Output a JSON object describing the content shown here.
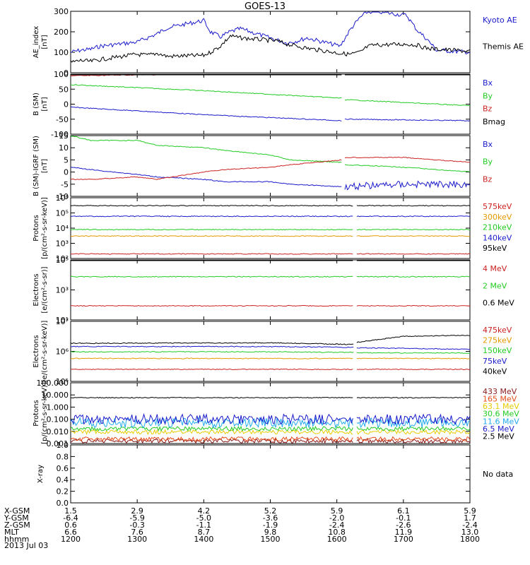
{
  "title": "GOES-13",
  "chart_data": [
    {
      "type": "line",
      "ylabel": "AE_index\n[nT]",
      "ylim": [
        0,
        300
      ],
      "yticks": [
        "0",
        "100",
        "200",
        "300"
      ],
      "series": [
        {
          "name": "Kyoto AE",
          "color": "#1a1acc",
          "x": [
            1200,
            1215,
            1230,
            1245,
            1300,
            1315,
            1330,
            1345,
            1400,
            1410,
            1425,
            1440,
            1455,
            1510,
            1525,
            1540,
            1555,
            1605,
            1620,
            1635,
            1645,
            1655,
            1705,
            1720,
            1735,
            1750,
            1800
          ],
          "y": [
            100,
            110,
            115,
            130,
            150,
            170,
            190,
            220,
            255,
            200,
            175,
            200,
            215,
            160,
            145,
            155,
            170,
            130,
            210,
            270,
            295,
            300,
            280,
            210,
            165,
            110,
            100
          ]
        },
        {
          "name": "Themis AE",
          "color": "#000000",
          "x": [
            1200,
            1215,
            1230,
            1245,
            1300,
            1315,
            1330,
            1345,
            1400,
            1410,
            1425,
            1440,
            1455,
            1510,
            1525,
            1540,
            1555,
            1605,
            1620,
            1635,
            1645,
            1655,
            1705,
            1720,
            1735,
            1750,
            1800
          ],
          "y": [
            50,
            60,
            55,
            65,
            90,
            85,
            95,
            80,
            85,
            100,
            130,
            180,
            170,
            155,
            140,
            130,
            120,
            95,
            90,
            100,
            125,
            135,
            140,
            135,
            120,
            115,
            105
          ]
        }
      ]
    },
    {
      "type": "line",
      "ylabel": "B (SM)\n[nT]",
      "ylim": [
        -100,
        100
      ],
      "yticks": [
        "-100",
        "-50",
        "0",
        "50",
        "100"
      ],
      "gap": [
        1607,
        1612
      ],
      "series": [
        {
          "name": "Bx",
          "color": "#1a1acc",
          "x": [
            1200,
            1400,
            1607,
            1612,
            1800
          ],
          "y": [
            -10,
            -35,
            -55,
            -50,
            -55
          ]
        },
        {
          "name": "By",
          "color": "#22cc22",
          "x": [
            1200,
            1400,
            1607,
            1612,
            1800
          ],
          "y": [
            65,
            45,
            20,
            15,
            -5
          ]
        },
        {
          "name": "Bz",
          "color": "#cc2222",
          "x": [
            1200,
            1400,
            1607,
            1612,
            1800
          ],
          "y": [
            95,
            100,
            102,
            100,
            105
          ]
        },
        {
          "name": "Bmag",
          "color": "#000000",
          "x": [
            1200,
            1400,
            1607,
            1612,
            1800
          ],
          "y": [
            115,
            110,
            110,
            108,
            110
          ]
        }
      ]
    },
    {
      "type": "line",
      "ylabel": "B (SM)-IGRF (SM)\n[nT]",
      "ylim": [
        -10,
        15
      ],
      "yticks": [
        "-10",
        "-5",
        "0",
        "5",
        "10",
        "15"
      ],
      "gap": [
        1607,
        1612
      ],
      "series": [
        {
          "name": "Bx",
          "color": "#1a1acc",
          "x": [
            1200,
            1230,
            1300,
            1330,
            1400,
            1430,
            1500,
            1530,
            1607,
            1612,
            1700,
            1800
          ],
          "y": [
            2,
            1,
            -1,
            -2,
            -3,
            -4,
            -4,
            -5,
            -6,
            -6,
            -5,
            -5
          ]
        },
        {
          "name": "By",
          "color": "#22cc22",
          "x": [
            1200,
            1230,
            1300,
            1330,
            1400,
            1430,
            1500,
            1530,
            1607,
            1612,
            1700,
            1800
          ],
          "y": [
            15,
            13,
            13,
            11,
            10,
            9,
            7,
            5,
            4,
            3,
            2,
            0
          ]
        },
        {
          "name": "Bz",
          "color": "#cc2222",
          "x": [
            1200,
            1230,
            1300,
            1330,
            1400,
            1430,
            1500,
            1530,
            1607,
            1612,
            1700,
            1800
          ],
          "y": [
            -3,
            -3,
            -2,
            -3,
            0,
            1,
            2,
            3,
            5,
            6,
            6,
            4
          ]
        }
      ]
    },
    {
      "type": "line",
      "ylabel": "Protons\n[p/(cm²-s-sr-keV)]",
      "ylog": true,
      "ylim": [
        100,
        1000000
      ],
      "yticks": [
        "10²",
        "10³",
        "10⁴",
        "10⁵",
        "10⁶"
      ],
      "gap": [
        1625,
        1630
      ],
      "series": [
        {
          "name": "575keV",
          "color": "#cc2222",
          "x": [
            1200,
            1800
          ],
          "y": [
            200,
            200
          ]
        },
        {
          "name": "300keV",
          "color": "#e69900",
          "x": [
            1200,
            1800
          ],
          "y": [
            3000,
            3000
          ]
        },
        {
          "name": "210keV",
          "color": "#22cc22",
          "x": [
            1200,
            1800
          ],
          "y": [
            8000,
            8000
          ]
        },
        {
          "name": "140keV",
          "color": "#1a1acc",
          "x": [
            1200,
            1800
          ],
          "y": [
            60000,
            60000
          ]
        },
        {
          "name": "95keV",
          "color": "#000000",
          "x": [
            1200,
            1800
          ],
          "y": [
            300000,
            300000
          ]
        }
      ]
    },
    {
      "type": "line",
      "ylabel": "Electrons\n[e/(cm²-s-sr)]",
      "ylog": true,
      "ylim": [
        1,
        100000
      ],
      "yticks": [
        "10¹",
        "10³",
        "10⁵"
      ],
      "gap": [
        1625,
        1630
      ],
      "series": [
        {
          "name": "4 MeV",
          "color": "#cc2222",
          "x": [
            1200,
            1800
          ],
          "y": [
            15,
            15
          ]
        },
        {
          "name": "2 MeV",
          "color": "#22cc22",
          "x": [
            1200,
            1800
          ],
          "y": [
            4000,
            4000
          ]
        },
        {
          "name": "0.6 MeV",
          "color": "#000000",
          "x": [
            1200,
            1800
          ],
          "y": [
            100000,
            100000
          ]
        }
      ]
    },
    {
      "type": "line",
      "ylabel": "Electrons\n[e/(cm²-s-sr-keV)]",
      "ylog": true,
      "ylim": [
        10000,
        10000000
      ],
      "yticks": [
        "10⁵",
        "10⁶",
        "10⁷"
      ],
      "gap": [
        1625,
        1630
      ],
      "series": [
        {
          "name": "475keV",
          "color": "#cc2222",
          "x": [
            1200,
            1800
          ],
          "y": [
            40000,
            40000
          ]
        },
        {
          "name": "275keV",
          "color": "#e69900",
          "x": [
            1200,
            1800
          ],
          "y": [
            140000,
            140000
          ]
        },
        {
          "name": "150keV",
          "color": "#22cc22",
          "x": [
            1200,
            1500,
            1625,
            1630,
            1800
          ],
          "y": [
            300000,
            300000,
            280000,
            270000,
            260000
          ]
        },
        {
          "name": "75keV",
          "color": "#1a1acc",
          "x": [
            1200,
            1500,
            1625,
            1630,
            1800
          ],
          "y": [
            550000,
            550000,
            500000,
            480000,
            400000
          ]
        },
        {
          "name": "40keV",
          "color": "#000000",
          "x": [
            1200,
            1500,
            1625,
            1630,
            1700,
            1800
          ],
          "y": [
            800000,
            850000,
            700000,
            900000,
            1800000,
            2000000
          ]
        }
      ]
    },
    {
      "type": "line",
      "ylabel": "Protons\n[p/(cm²-s-sr-keV)]",
      "ylog": true,
      "ylim": [
        0.0006,
        120
      ],
      "yticks": [
        "0.001",
        "0.010",
        "0.100",
        "1.000",
        "10.000",
        "100.000"
      ],
      "gap": [
        1625,
        1630
      ],
      "series": [
        {
          "name": "433 MeV",
          "color": "#8b1a1a",
          "x": [
            1200,
            1800
          ],
          "y": [
            0.001,
            0.001
          ]
        },
        {
          "name": "165 MeV",
          "color": "#e64d1a",
          "x": [
            1200,
            1800
          ],
          "y": [
            0.0015,
            0.0015
          ]
        },
        {
          "name": "63.1 MeV",
          "color": "#e6cc00",
          "x": [
            1200,
            1800
          ],
          "y": [
            0.006,
            0.006
          ]
        },
        {
          "name": "30.6 MeV",
          "color": "#22cc22",
          "x": [
            1200,
            1800
          ],
          "y": [
            0.012,
            0.012
          ]
        },
        {
          "name": "11.6 MeV",
          "color": "#22aaee",
          "x": [
            1200,
            1800
          ],
          "y": [
            0.04,
            0.04
          ]
        },
        {
          "name": "6.5 MeV",
          "color": "#1a1acc",
          "x": [
            1200,
            1800
          ],
          "y": [
            0.08,
            0.08
          ]
        },
        {
          "name": "2.5 MeV",
          "color": "#000000",
          "x": [
            1200,
            1800
          ],
          "y": [
            6,
            6
          ]
        }
      ],
      "noisy": true
    },
    {
      "type": "line",
      "ylabel": "X-ray",
      "ylim": [
        0,
        1
      ],
      "yticks": [
        "0.0",
        "0.2",
        "0.4",
        "0.6",
        "0.8",
        "1.0"
      ],
      "note": "No data",
      "series": []
    }
  ],
  "xaxis": {
    "xlim": [
      1200,
      1800
    ],
    "ticks": [
      1200,
      1300,
      1400,
      1500,
      1600,
      1700,
      1800
    ]
  },
  "ephemeris": {
    "labels": [
      "X-GSM",
      "Y-GSM",
      "Z-GSM",
      "MLT",
      "hhmm"
    ],
    "rows": [
      [
        "1.5",
        "2.9",
        "4.2",
        "5.2",
        "5.9",
        "6.1",
        "5.9"
      ],
      [
        "-6.4",
        "-5.9",
        "-5.0",
        "-3.6",
        "-2.0",
        "-0.1",
        "1.7"
      ],
      [
        "0.6",
        "-0.3",
        "-1.1",
        "-1.9",
        "-2.4",
        "-2.6",
        "-2.4"
      ],
      [
        "6.6",
        "7.6",
        "8.7",
        "9.8",
        "10.8",
        "11.9",
        "13.0"
      ],
      [
        "1200",
        "1300",
        "1400",
        "1500",
        "1600",
        "1700",
        "1800"
      ]
    ],
    "date": "2013 Jul 03"
  }
}
